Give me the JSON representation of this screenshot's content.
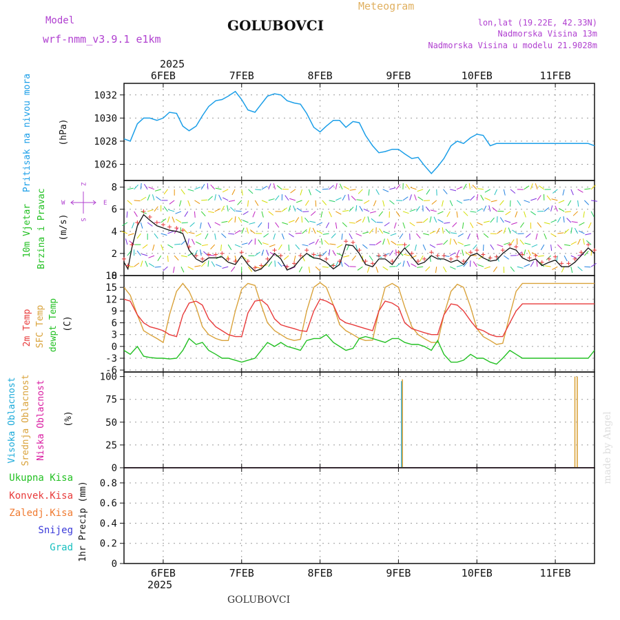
{
  "header": {
    "model_label": "Model",
    "model_name": "wrf-nmm_v3.9.1 e1km",
    "station": "GOLUBOVCI",
    "product": "Meteogram",
    "coords": "lon,lat (19.22E, 42.33N)",
    "elevation": "Nadmorska Visina 13m",
    "model_elevation": "Nadmorska Visina u modelu 21.9028m"
  },
  "footer": {
    "station": "GOLUBOVCI",
    "credit": "made by Angel"
  },
  "colors": {
    "pressure": "#1a9ee8",
    "temp2m": "#e83a3a",
    "sfc_temp": "#d9a23a",
    "dewpoint": "#22c022",
    "cloud_high": "#19a9d9",
    "cloud_mid": "#d9a23a",
    "cloud_low": "#d919a0",
    "wind_label": "#22c022",
    "purple": "#b040d0",
    "precip_total": "#22c022",
    "precip_conv": "#e83a3a",
    "precip_frz": "#f07a30",
    "precip_snow": "#3a3ad9",
    "precip_grad": "#19c0c0"
  },
  "chart_data": [
    {
      "type": "line",
      "panel": "pressure",
      "title": "",
      "ylabel_lines": [
        "Pritisak na nivou mora"
      ],
      "unit": "(hPa)",
      "xlabel_top_year": "2025",
      "x_tick_labels": [
        "6FEB",
        "7FEB",
        "8FEB",
        "9FEB",
        "10FEB",
        "11FEB"
      ],
      "xlim_days": [
        5.5,
        11.5
      ],
      "ylim": [
        1024.6,
        1033.0
      ],
      "y_ticks": [
        1026,
        1028,
        1030,
        1032
      ],
      "series": [
        {
          "x": [
            5.5,
            5.58,
            5.67,
            5.75,
            5.83,
            5.92,
            6.0,
            6.08,
            6.17,
            6.25,
            6.33,
            6.42,
            6.5,
            6.58,
            6.67,
            6.75,
            6.83,
            6.92,
            7.0,
            7.08,
            7.17,
            7.25,
            7.33,
            7.42,
            7.5,
            7.58,
            7.67,
            7.75,
            7.83,
            7.92,
            8.0,
            8.08,
            8.17,
            8.25,
            8.33,
            8.42,
            8.5,
            8.58,
            8.67,
            8.75,
            8.83,
            8.92,
            9.0,
            9.08,
            9.17,
            9.25,
            9.33,
            9.42,
            9.5,
            9.58,
            9.67,
            9.75,
            9.83,
            9.92,
            10.0,
            10.08,
            10.17,
            10.25,
            10.33,
            10.42,
            10.5,
            10.58,
            10.67,
            10.75,
            10.83,
            10.92,
            11.0,
            11.08,
            11.17,
            11.25,
            11.33,
            11.42,
            11.5
          ],
          "y": [
            1028.2,
            1028.0,
            1029.5,
            1030.0,
            1030.0,
            1029.8,
            1030.0,
            1030.5,
            1030.4,
            1029.3,
            1028.9,
            1029.3,
            1030.2,
            1031.0,
            1031.5,
            1031.6,
            1031.9,
            1032.3,
            1031.6,
            1030.7,
            1030.5,
            1031.2,
            1031.9,
            1032.1,
            1032.0,
            1031.5,
            1031.3,
            1031.2,
            1030.4,
            1029.2,
            1028.8,
            1029.3,
            1029.8,
            1029.8,
            1029.2,
            1029.7,
            1029.6,
            1028.5,
            1027.6,
            1027.0,
            1027.1,
            1027.3,
            1027.3,
            1026.9,
            1026.5,
            1026.6,
            1025.9,
            1025.2,
            1025.8,
            1026.5,
            1027.6,
            1028.0,
            1027.8,
            1028.3,
            1028.6,
            1028.5,
            1027.6,
            1027.8,
            1027.8,
            1027.8,
            1027.8,
            1027.8,
            1027.8,
            1027.8,
            1027.8,
            1027.8,
            1027.8,
            1027.8,
            1027.8,
            1027.8,
            1027.8,
            1027.8,
            1027.6
          ]
        }
      ]
    },
    {
      "type": "line",
      "panel": "wind",
      "title": "",
      "ylabel_lines": [
        "10m Vjetar",
        "Brzina i Pravac"
      ],
      "unit": "(m/s)",
      "compass": [
        "Z",
        "W",
        "E",
        "S"
      ],
      "xlim_days": [
        5.5,
        11.5
      ],
      "ylim": [
        0,
        8.6
      ],
      "y_ticks": [
        0,
        2,
        4,
        6,
        8
      ],
      "series": [
        {
          "name": "",
          "x": [
            5.5,
            5.55,
            5.6,
            5.67,
            5.75,
            5.83,
            5.92,
            6.0,
            6.08,
            6.17,
            6.25,
            6.33,
            6.42,
            6.5,
            6.58,
            6.67,
            6.75,
            6.83,
            6.92,
            7.0,
            7.08,
            7.17,
            7.25,
            7.33,
            7.42,
            7.5,
            7.58,
            7.67,
            7.75,
            7.83,
            7.92,
            8.0,
            8.08,
            8.17,
            8.25,
            8.33,
            8.42,
            8.5,
            8.58,
            8.67,
            8.75,
            8.83,
            8.92,
            9.0,
            9.08,
            9.17,
            9.25,
            9.33,
            9.42,
            9.5,
            9.58,
            9.67,
            9.75,
            9.83,
            9.92,
            10.0,
            10.08,
            10.17,
            10.25,
            10.33,
            10.42,
            10.5,
            10.58,
            10.67,
            10.75,
            10.83,
            10.92,
            11.0,
            11.08,
            11.17,
            11.25,
            11.33,
            11.42,
            11.5
          ],
          "y": [
            1.2,
            0.6,
            2.5,
            4.5,
            5.5,
            5.0,
            4.5,
            4.3,
            4.1,
            4.0,
            3.8,
            2.3,
            1.5,
            1.2,
            1.6,
            1.6,
            1.7,
            1.2,
            1.0,
            1.8,
            1.0,
            0.4,
            0.6,
            1.2,
            2.0,
            1.5,
            0.5,
            0.8,
            1.5,
            2.0,
            1.6,
            1.5,
            1.2,
            0.6,
            1.0,
            2.8,
            2.7,
            2.0,
            1.0,
            0.8,
            1.5,
            1.5,
            1.0,
            1.8,
            2.5,
            1.7,
            1.0,
            1.2,
            1.8,
            1.5,
            1.5,
            1.2,
            1.4,
            1.0,
            1.8,
            2.0,
            1.6,
            1.3,
            1.4,
            2.0,
            2.5,
            2.3,
            1.6,
            1.3,
            1.5,
            0.9,
            1.2,
            1.4,
            0.8,
            0.8,
            1.2,
            1.8,
            2.5,
            2.0
          ]
        }
      ]
    },
    {
      "type": "line",
      "panel": "temperature",
      "title": "",
      "ylabel_lines": [
        "2m Temp",
        "SFC Temp",
        "dewpt Temp"
      ],
      "unit": "(C)",
      "xlim_days": [
        5.5,
        11.5
      ],
      "ylim": [
        -6.5,
        18
      ],
      "y_ticks": [
        -6,
        -3,
        0,
        3,
        6,
        9,
        12,
        15,
        18
      ],
      "series": [
        {
          "name": "2m Temp",
          "x": [
            5.5,
            5.58,
            5.67,
            5.75,
            5.83,
            5.92,
            6.0,
            6.08,
            6.17,
            6.25,
            6.33,
            6.42,
            6.5,
            6.58,
            6.67,
            6.75,
            6.83,
            6.92,
            7.0,
            7.08,
            7.17,
            7.25,
            7.33,
            7.42,
            7.5,
            7.58,
            7.67,
            7.75,
            7.83,
            7.92,
            8.0,
            8.08,
            8.17,
            8.25,
            8.33,
            8.42,
            8.5,
            8.58,
            8.67,
            8.75,
            8.83,
            8.92,
            9.0,
            9.08,
            9.17,
            9.25,
            9.33,
            9.42,
            9.5,
            9.58,
            9.67,
            9.75,
            9.83,
            9.92,
            10.0,
            10.08,
            10.17,
            10.25,
            10.33,
            10.42,
            10.5,
            10.58,
            10.67,
            10.75,
            10.83,
            10.92,
            11.0,
            11.08,
            11.17,
            11.25,
            11.33,
            11.42,
            11.5
          ],
          "y": [
            12.0,
            11.5,
            8.0,
            6.0,
            5.0,
            4.5,
            4.0,
            3.0,
            2.5,
            8.0,
            11.0,
            11.5,
            10.5,
            7.0,
            5.0,
            4.0,
            3.0,
            2.5,
            2.5,
            8.5,
            11.5,
            11.8,
            10.5,
            7.0,
            5.5,
            5.0,
            4.5,
            4.0,
            3.8,
            9.0,
            12.0,
            11.5,
            10.5,
            7.0,
            6.0,
            5.5,
            5.0,
            4.5,
            4.0,
            9.0,
            11.5,
            11.0,
            10.0,
            6.0,
            4.5,
            4.0,
            3.5,
            3.0,
            3.0,
            8.0,
            10.8,
            10.5,
            9.0,
            6.5,
            4.5,
            4.0,
            3.0,
            2.5,
            2.5,
            6.0,
            9.0,
            10.8,
            10.8,
            10.8,
            10.8,
            10.8,
            10.8,
            10.8,
            10.8,
            10.8,
            10.8,
            10.8,
            10.8
          ]
        },
        {
          "name": "SFC Temp",
          "x": [
            5.5,
            5.58,
            5.67,
            5.75,
            5.83,
            5.92,
            6.0,
            6.08,
            6.17,
            6.25,
            6.33,
            6.42,
            6.5,
            6.58,
            6.67,
            6.75,
            6.83,
            6.92,
            7.0,
            7.08,
            7.17,
            7.25,
            7.33,
            7.42,
            7.5,
            7.58,
            7.67,
            7.75,
            7.83,
            7.92,
            8.0,
            8.08,
            8.17,
            8.25,
            8.33,
            8.42,
            8.5,
            8.58,
            8.67,
            8.75,
            8.83,
            8.92,
            9.0,
            9.08,
            9.17,
            9.25,
            9.33,
            9.42,
            9.5,
            9.58,
            9.67,
            9.75,
            9.83,
            9.92,
            10.0,
            10.08,
            10.17,
            10.25,
            10.33,
            10.42,
            10.5,
            10.58,
            10.67,
            10.75,
            10.83,
            10.92,
            11.0,
            11.08,
            11.17,
            11.25,
            11.33,
            11.42,
            11.5
          ],
          "y": [
            15.0,
            13.0,
            8.0,
            4.0,
            3.0,
            2.0,
            1.0,
            8.0,
            14.0,
            16.0,
            14.0,
            10.0,
            5.0,
            3.0,
            2.0,
            1.5,
            1.5,
            9.0,
            14.5,
            16.0,
            15.5,
            10.5,
            6.0,
            4.0,
            3.0,
            2.0,
            1.5,
            1.8,
            9.0,
            15.0,
            16.2,
            15.0,
            10.5,
            5.5,
            4.0,
            3.0,
            2.0,
            1.5,
            1.6,
            9.0,
            15.0,
            16.0,
            15.0,
            10.0,
            5.0,
            3.0,
            2.0,
            1.0,
            1.0,
            8.0,
            14.0,
            15.8,
            15.0,
            10.0,
            4.5,
            2.5,
            1.5,
            0.5,
            0.8,
            8.0,
            14.0,
            16.0,
            16.0,
            16.0,
            16.0,
            16.0,
            16.0,
            16.0,
            16.0,
            16.0,
            16.0,
            16.0,
            16.0
          ]
        },
        {
          "name": "dewpt Temp",
          "x": [
            5.5,
            5.58,
            5.67,
            5.75,
            5.83,
            5.92,
            6.0,
            6.08,
            6.17,
            6.25,
            6.33,
            6.42,
            6.5,
            6.58,
            6.67,
            6.75,
            6.83,
            6.92,
            7.0,
            7.08,
            7.17,
            7.25,
            7.33,
            7.42,
            7.5,
            7.58,
            7.67,
            7.75,
            7.83,
            7.92,
            8.0,
            8.08,
            8.17,
            8.25,
            8.33,
            8.42,
            8.5,
            8.58,
            8.67,
            8.75,
            8.83,
            8.92,
            9.0,
            9.08,
            9.17,
            9.25,
            9.33,
            9.42,
            9.5,
            9.58,
            9.67,
            9.75,
            9.83,
            9.92,
            10.0,
            10.08,
            10.17,
            10.25,
            10.33,
            10.42,
            10.5,
            10.58,
            10.67,
            10.75,
            10.83,
            10.92,
            11.0,
            11.08,
            11.17,
            11.25,
            11.33,
            11.42,
            11.5
          ],
          "y": [
            -1.0,
            -2.0,
            0.0,
            -2.5,
            -2.8,
            -3.0,
            -3.0,
            -3.2,
            -3.0,
            -1.0,
            2.0,
            0.5,
            1.0,
            -1.0,
            -2.0,
            -3.0,
            -3.0,
            -3.5,
            -4.0,
            -3.5,
            -3.0,
            -1.0,
            1.0,
            0.0,
            1.0,
            0.0,
            -0.5,
            -1.0,
            1.5,
            2.0,
            2.0,
            3.0,
            1.0,
            0.0,
            -1.0,
            -0.5,
            2.0,
            2.5,
            2.0,
            1.5,
            1.0,
            2.0,
            2.0,
            1.0,
            0.5,
            0.5,
            0.0,
            -1.0,
            1.5,
            -2.0,
            -4.0,
            -4.0,
            -3.5,
            -2.0,
            -3.0,
            -3.0,
            -4.0,
            -4.5,
            -3.0,
            -1.0,
            -2.0,
            -3.0,
            -3.0,
            -3.0,
            -3.0,
            -3.0,
            -3.0,
            -3.0,
            -3.0,
            -3.0,
            -3.0,
            -3.0,
            -1.0
          ]
        }
      ]
    },
    {
      "type": "bar",
      "panel": "clouds",
      "title": "",
      "ylabel_lines": [
        "Visoka Oblacnost",
        "Srednja Oblacnost",
        "Niska Oblacnost"
      ],
      "unit": "(%)",
      "xlim_days": [
        5.5,
        11.5
      ],
      "ylim": [
        0,
        105
      ],
      "y_ticks": [
        0,
        25,
        50,
        75,
        100
      ],
      "series": [
        {
          "name": "Visoka Oblacnost",
          "x": [
            9.04
          ],
          "y": [
            95
          ]
        },
        {
          "name": "Srednja Oblacnost",
          "x": [
            9.05,
            11.25,
            11.28
          ],
          "y": [
            97,
            100,
            100
          ]
        },
        {
          "name": "Niska Oblacnost",
          "x": [],
          "y": []
        }
      ]
    },
    {
      "type": "bar",
      "panel": "precipitation",
      "title": "",
      "ylabel_lines": [
        "1hr Precip (mm)"
      ],
      "legend": [
        "Ukupna Kisa",
        "Konvek.Kisa",
        "Zaledj.Kisa",
        "Snijeg",
        "Grad"
      ],
      "xlim_days": [
        5.5,
        11.5
      ],
      "ylim": [
        0,
        0.95
      ],
      "y_ticks": [
        0,
        0.2,
        0.4,
        0.6,
        0.8
      ],
      "y_tick_labels": [
        "0",
        "0.2",
        "0.4",
        "0.6",
        "0.8"
      ],
      "x_tick_labels": [
        "6FEB",
        "7FEB",
        "8FEB",
        "9FEB",
        "10FEB",
        "11FEB"
      ],
      "xlabel_bottom_year": "2025",
      "series": []
    }
  ]
}
